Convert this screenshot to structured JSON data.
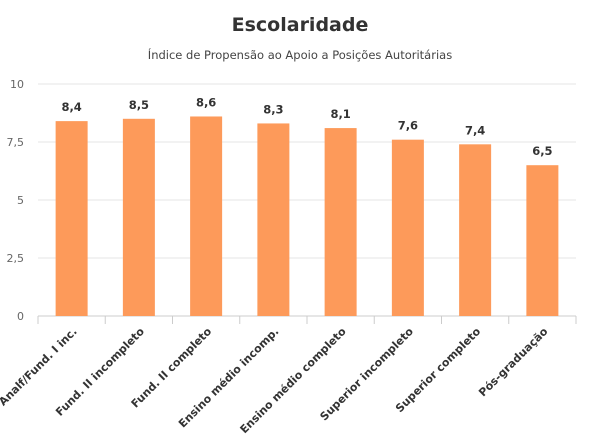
{
  "chart_data": {
    "type": "bar",
    "title": "Escolaridade",
    "subtitle": "Índice de Propensão ao Apoio a Posições Autoritárias",
    "categories": [
      "Analf/Fund. I inc.",
      "Fund. II incompleto",
      "Fund. II completo",
      "Ensino médio incomp.",
      "Ensino médio completo",
      "Superior incompleto",
      "Superior completo",
      "Pós-graduação"
    ],
    "values": [
      8.4,
      8.5,
      8.6,
      8.3,
      8.1,
      7.6,
      7.4,
      6.5
    ],
    "value_labels": [
      "8,4",
      "8,5",
      "8,6",
      "8,3",
      "8,1",
      "7,6",
      "7,4",
      "6,5"
    ],
    "ylim": [
      0,
      10
    ],
    "yticks": [
      0,
      2.5,
      5,
      7.5,
      10
    ],
    "ytick_labels": [
      "0",
      "2,5",
      "5",
      "7,5",
      "10"
    ],
    "xlabel": "",
    "ylabel": "",
    "grid": true,
    "bar_color": "#fd9a5a"
  }
}
